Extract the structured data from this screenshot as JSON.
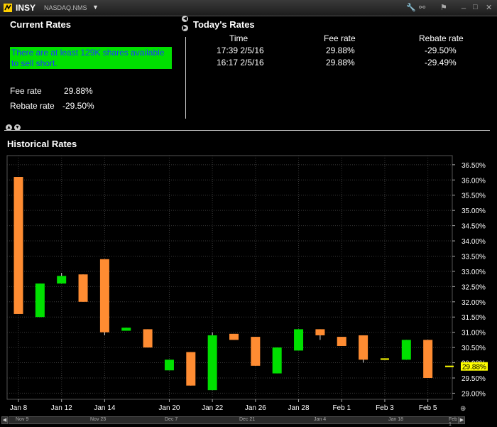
{
  "titlebar": {
    "symbol": "INSY",
    "exchange": "NASDAQ.NMS"
  },
  "current": {
    "title": "Current Rates",
    "message": "There are at least 129K shares available to sell short.",
    "fee_label": "Fee rate",
    "fee_value": "29.88%",
    "rebate_label": "Rebate rate",
    "rebate_value": "-29.50%"
  },
  "today": {
    "title": "Today's Rates",
    "headers": [
      "Time",
      "Fee rate",
      "Rebate rate"
    ],
    "rows": [
      {
        "time": "17:39  2/5/16",
        "fee": "29.88%",
        "rebate": "-29.50%"
      },
      {
        "time": "16:17  2/5/16",
        "fee": "29.88%",
        "rebate": "-29.49%"
      }
    ]
  },
  "historical": {
    "title": "Historical Rates"
  },
  "chart_data": {
    "type": "candlestick",
    "ylim": [
      28.8,
      36.8
    ],
    "yticks": [
      "36.50%",
      "36.00%",
      "35.50%",
      "35.00%",
      "34.50%",
      "34.00%",
      "33.50%",
      "33.00%",
      "32.50%",
      "32.00%",
      "31.50%",
      "31.00%",
      "30.50%",
      "30.00%",
      "29.50%",
      "29.00%"
    ],
    "xlabels": [
      "Jan 8",
      "Jan 12",
      "Jan 14",
      "Jan 20",
      "Jan 22",
      "Jan 26",
      "Jan 28",
      "Feb 1",
      "Feb 3",
      "Feb 5"
    ],
    "candles": [
      {
        "o": 36.1,
        "c": 31.6,
        "h": 36.1,
        "l": 31.6,
        "color": "#ff8c32"
      },
      {
        "o": 31.5,
        "c": 32.6,
        "h": 32.6,
        "l": 31.5,
        "color": "#00e000"
      },
      {
        "o": 32.6,
        "c": 32.85,
        "h": 32.95,
        "l": 32.6,
        "color": "#00e000"
      },
      {
        "o": 32.9,
        "c": 32.0,
        "h": 32.9,
        "l": 32.0,
        "color": "#ff8c32"
      },
      {
        "o": 33.4,
        "c": 31.0,
        "h": 33.4,
        "l": 30.9,
        "color": "#ff8c32"
      },
      {
        "o": 31.05,
        "c": 31.15,
        "h": 31.15,
        "l": 31.05,
        "color": "#00e000"
      },
      {
        "o": 31.1,
        "c": 30.5,
        "h": 31.1,
        "l": 30.5,
        "color": "#ff8c32"
      },
      {
        "o": 29.75,
        "c": 30.1,
        "h": 30.1,
        "l": 29.75,
        "color": "#00e000"
      },
      {
        "o": 30.35,
        "c": 29.25,
        "h": 30.35,
        "l": 29.25,
        "color": "#ff8c32"
      },
      {
        "o": 29.1,
        "c": 30.9,
        "h": 31.0,
        "l": 29.1,
        "color": "#00e000"
      },
      {
        "o": 30.95,
        "c": 30.75,
        "h": 30.95,
        "l": 30.75,
        "color": "#ff8c32"
      },
      {
        "o": 30.85,
        "c": 29.9,
        "h": 30.85,
        "l": 29.9,
        "color": "#ff8c32"
      },
      {
        "o": 29.65,
        "c": 30.5,
        "h": 30.5,
        "l": 29.65,
        "color": "#00e000"
      },
      {
        "o": 30.4,
        "c": 31.1,
        "h": 31.1,
        "l": 30.4,
        "color": "#00e000"
      },
      {
        "o": 31.1,
        "c": 30.9,
        "h": 31.1,
        "l": 30.75,
        "color": "#ff8c32"
      },
      {
        "o": 30.85,
        "c": 30.55,
        "h": 30.85,
        "l": 30.55,
        "color": "#ff8c32"
      },
      {
        "o": 30.9,
        "c": 30.1,
        "h": 30.9,
        "l": 30.0,
        "color": "#ff8c32"
      },
      {
        "o": 30.12,
        "c": 30.12,
        "h": 30.12,
        "l": 30.12,
        "color": "#ffff00"
      },
      {
        "o": 30.1,
        "c": 30.75,
        "h": 30.75,
        "l": 30.1,
        "color": "#00e000"
      },
      {
        "o": 30.75,
        "c": 29.5,
        "h": 30.75,
        "l": 29.5,
        "color": "#ff8c32"
      },
      {
        "o": 29.88,
        "c": 29.88,
        "h": 29.88,
        "l": 29.88,
        "color": "#ffff00"
      }
    ],
    "last_value_label": "29.88%",
    "last_value": 29.88
  },
  "scrollbar": {
    "labels": [
      "Nov 9",
      "Nov 23",
      "Dec 7",
      "Dec 21",
      "Jan 4",
      "Jan 18",
      "Feb 1"
    ]
  }
}
